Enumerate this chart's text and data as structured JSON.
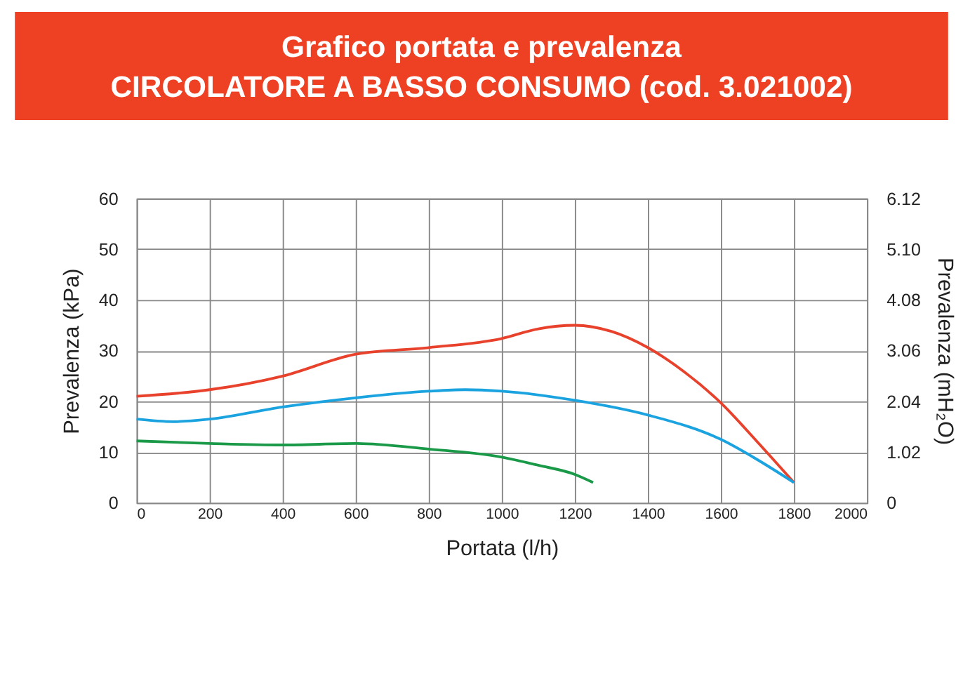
{
  "chart_data": {
    "type": "line",
    "title": "Grafico portata e prevalenza",
    "subtitle": "CIRCOLATORE A BASSO CONSUMO (cod. 3.021002)",
    "xlabel": "Portata (l/h)",
    "ylabel": "Prevalenza (kPa)",
    "y2label": "Prevalenza (mH₂O)",
    "xlim": [
      0,
      2000
    ],
    "xticks": [
      0,
      200,
      400,
      600,
      800,
      1000,
      1200,
      1400,
      1600,
      1800,
      2000
    ],
    "ylim": [
      0,
      60
    ],
    "yticks": [
      0,
      10,
      20,
      30,
      40,
      50,
      60
    ],
    "y2lim": [
      0,
      6.12
    ],
    "y2ticks": [
      0,
      1.02,
      2.04,
      3.06,
      4.08,
      {
        "value": 5.1,
        "label": "5.10"
      },
      6.12
    ],
    "grid": true,
    "legend": false,
    "marker": "none",
    "line_style": "solid",
    "series": [
      {
        "color": "#e8412c",
        "x": [
          0,
          200,
          400,
          600,
          800,
          1000,
          1100,
          1200,
          1300,
          1400,
          1500,
          1600,
          1700,
          1800
        ],
        "values": [
          21,
          22.3,
          25,
          29.3,
          30.6,
          32.4,
          34.3,
          35,
          33.8,
          30.6,
          25.8,
          19.7,
          12,
          4
        ]
      },
      {
        "color": "#1ba3e0",
        "x": [
          0,
          100,
          200,
          400,
          600,
          800,
          900,
          1000,
          1200,
          1400,
          1600,
          1700,
          1800
        ],
        "values": [
          16.5,
          16,
          16.5,
          18.9,
          20.7,
          22,
          22.3,
          22,
          20.2,
          17.3,
          12.5,
          8.5,
          4
        ]
      },
      {
        "color": "#1a9a48",
        "x": [
          0,
          200,
          400,
          600,
          800,
          1000,
          1100,
          1200,
          1250
        ],
        "values": [
          12.2,
          11.7,
          11.4,
          11.7,
          10.6,
          9,
          7.4,
          5.6,
          4
        ]
      }
    ]
  }
}
